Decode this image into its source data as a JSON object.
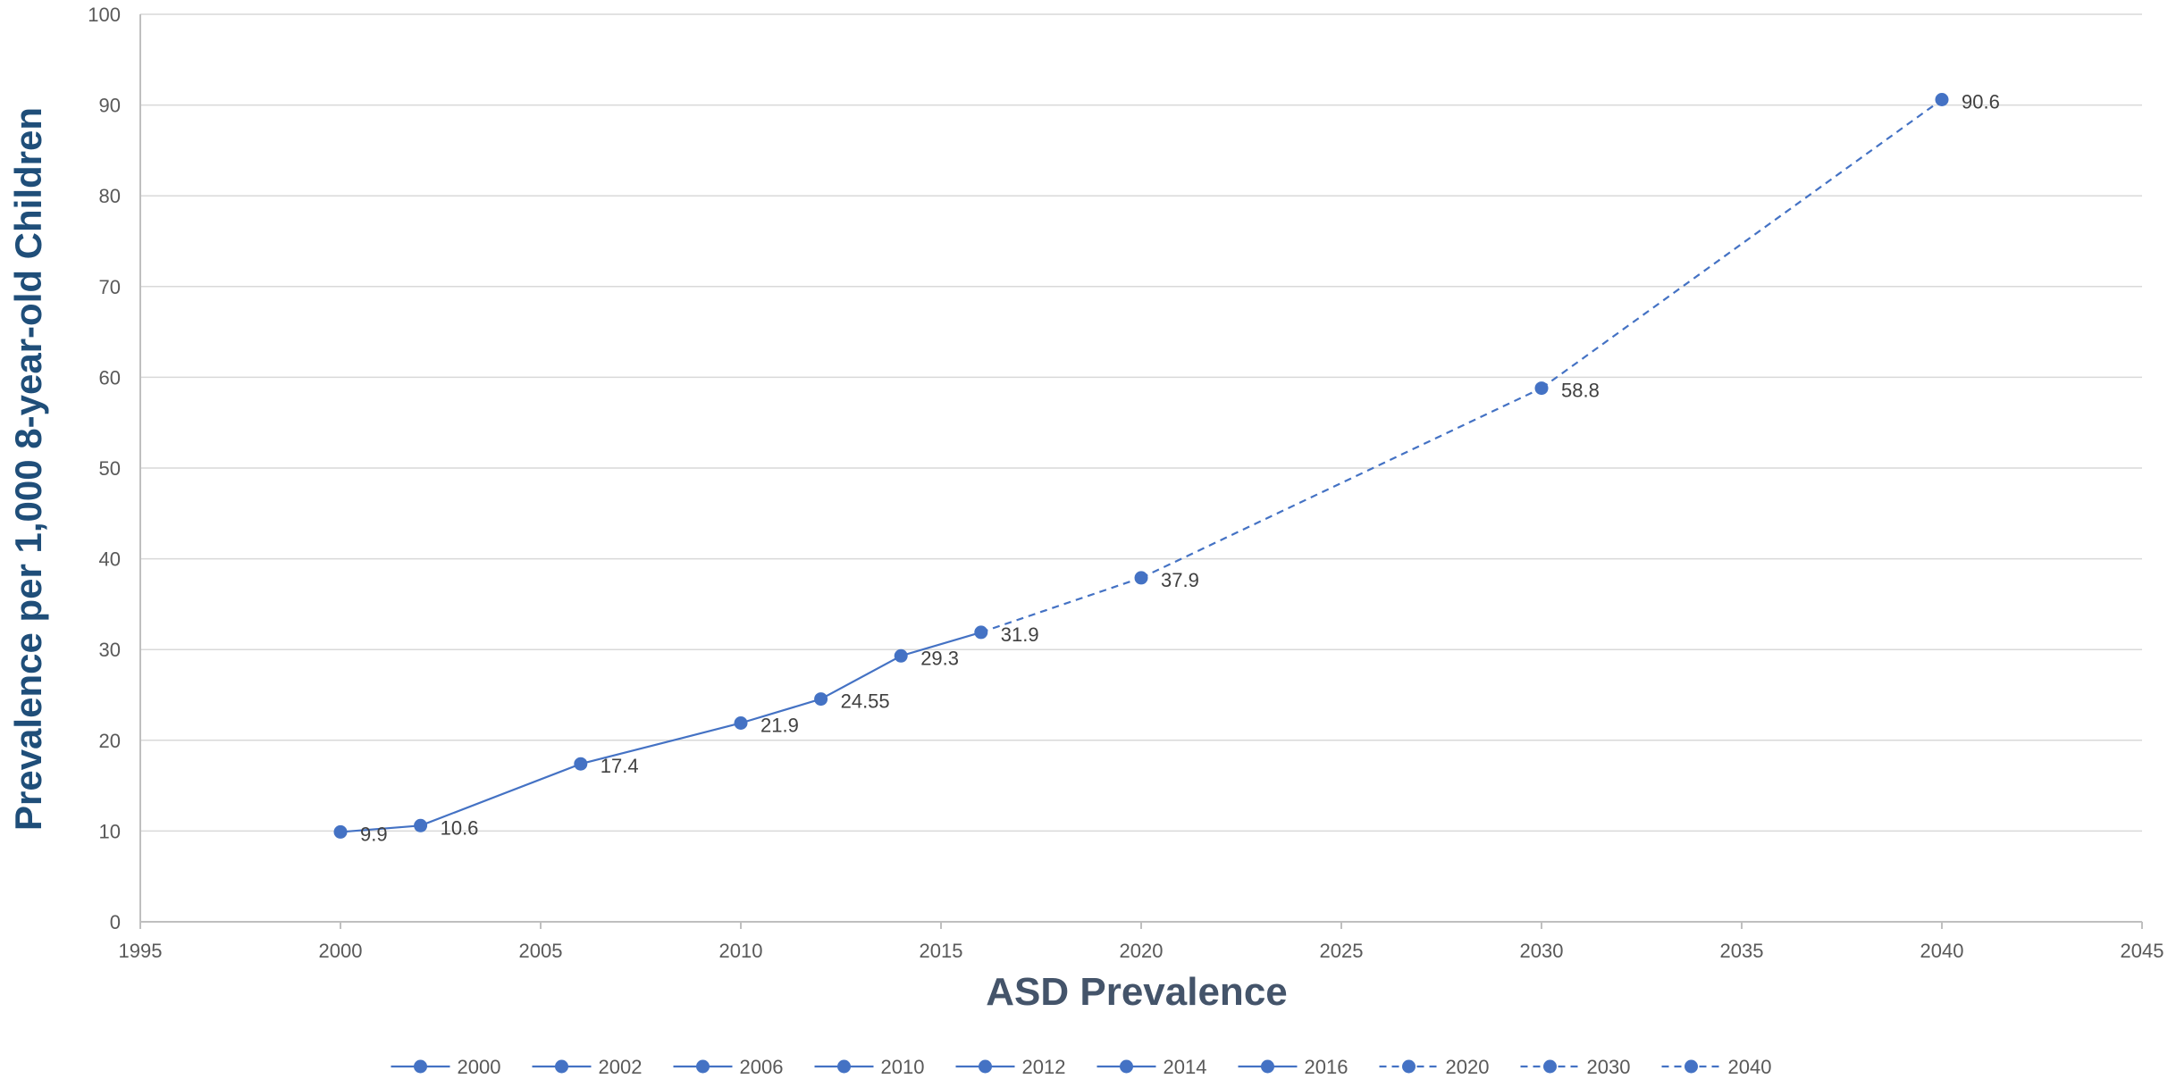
{
  "chart_data": {
    "type": "line",
    "title": "",
    "xlabel": "ASD Prevalence",
    "ylabel": "Prevalence per 1,000 8-year-old Children",
    "xlim": [
      1995,
      2045
    ],
    "ylim": [
      0,
      100
    ],
    "x_ticks": [
      1995,
      2000,
      2005,
      2010,
      2015,
      2020,
      2025,
      2030,
      2035,
      2040,
      2045
    ],
    "y_ticks": [
      0,
      10,
      20,
      30,
      40,
      50,
      60,
      70,
      80,
      90,
      100
    ],
    "grid": true,
    "legend_position": "bottom",
    "color": "#4472c4",
    "points": [
      {
        "x": 2000,
        "y": 9.9,
        "label": "9.9",
        "style": "solid"
      },
      {
        "x": 2002,
        "y": 10.6,
        "label": "10.6",
        "style": "solid"
      },
      {
        "x": 2006,
        "y": 17.4,
        "label": "17.4",
        "style": "solid"
      },
      {
        "x": 2010,
        "y": 21.9,
        "label": "21.9",
        "style": "solid"
      },
      {
        "x": 2012,
        "y": 24.55,
        "label": "24.55",
        "style": "solid"
      },
      {
        "x": 2014,
        "y": 29.3,
        "label": "29.3",
        "style": "solid"
      },
      {
        "x": 2016,
        "y": 31.9,
        "label": "31.9",
        "style": "solid"
      },
      {
        "x": 2020,
        "y": 37.9,
        "label": "37.9",
        "style": "dashed"
      },
      {
        "x": 2030,
        "y": 58.8,
        "label": "58.8",
        "style": "dashed"
      },
      {
        "x": 2040,
        "y": 90.6,
        "label": "90.6",
        "style": "dashed"
      }
    ],
    "legend": [
      {
        "name": "2000",
        "style": "solid"
      },
      {
        "name": "2002",
        "style": "solid"
      },
      {
        "name": "2006",
        "style": "solid"
      },
      {
        "name": "2010",
        "style": "solid"
      },
      {
        "name": "2012",
        "style": "solid"
      },
      {
        "name": "2014",
        "style": "solid"
      },
      {
        "name": "2016",
        "style": "solid"
      },
      {
        "name": "2020",
        "style": "dashed"
      },
      {
        "name": "2030",
        "style": "dashed"
      },
      {
        "name": "2040",
        "style": "dashed"
      }
    ]
  }
}
